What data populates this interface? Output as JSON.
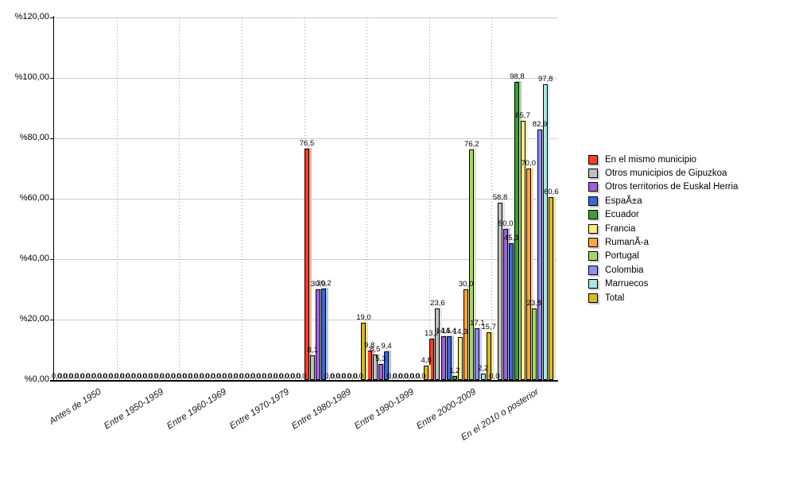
{
  "chart_data": {
    "type": "bar",
    "title": "",
    "categories": [
      "Antes de 1950",
      "Entre 1950-1959",
      "Entre 1960-1969",
      "Entre 1970-1979",
      "Entre 1980-1989",
      "Entre 1990-1999",
      "Entre 2000-2009",
      "En el 2010 o posterior"
    ],
    "series": [
      {
        "name": "En el mismo municipio",
        "color": "#f2402c",
        "shadow": "#f8b09e",
        "values": [
          0,
          0,
          0,
          0,
          76.5,
          9.8,
          13.7,
          0
        ]
      },
      {
        "name": "Otros municipios de Gipuzkoa",
        "color": "#c0c0c0",
        "shadow": "#e2e2e2",
        "values": [
          0,
          0,
          0,
          0,
          8.1,
          8.5,
          23.6,
          58.8
        ]
      },
      {
        "name": "Otros territorios de Euskal Herria",
        "color": "#9c63dd",
        "shadow": "#d2b8f0",
        "values": [
          0,
          0,
          0,
          0,
          30.0,
          5.3,
          14.5,
          50.0
        ]
      },
      {
        "name": "EspaÃ±a",
        "color": "#3e66d4",
        "shadow": "#b0c4f2",
        "values": [
          0,
          0,
          0,
          0,
          30.2,
          9.4,
          14.4,
          45.3
        ]
      },
      {
        "name": "Ecuador",
        "color": "#3f9e38",
        "shadow": "#a8d4a2",
        "values": [
          0,
          0,
          0,
          0,
          0,
          0,
          1.2,
          98.8
        ]
      },
      {
        "name": "Francia",
        "color": "#f7ec86",
        "shadow": "#fbf6c9",
        "values": [
          0,
          0,
          0,
          0,
          0,
          0,
          14.3,
          85.7
        ]
      },
      {
        "name": "RumanÃ-a",
        "color": "#faa743",
        "shadow": "#fcd9ab",
        "values": [
          0,
          0,
          0,
          0,
          0,
          0,
          30.0,
          70.0
        ]
      },
      {
        "name": "Portugal",
        "color": "#a9d46a",
        "shadow": "#d8edbd",
        "values": [
          0,
          0,
          0,
          0,
          0,
          0,
          76.2,
          23.8
        ]
      },
      {
        "name": "Colombia",
        "color": "#8f8ff2",
        "shadow": "#cbcbf8",
        "values": [
          0,
          0,
          0,
          0,
          0,
          0,
          17.1,
          82.9
        ]
      },
      {
        "name": "Marruecos",
        "color": "#ace5e2",
        "shadow": "#def5f3",
        "values": [
          0,
          0,
          0,
          0,
          0,
          0,
          2.2,
          97.8
        ]
      },
      {
        "name": "Total",
        "color": "#d6b92d",
        "shadow": "#ecdf9e",
        "values": [
          0,
          0,
          0,
          0,
          19.0,
          4.8,
          15.7,
          60.6
        ]
      }
    ],
    "y_axis": {
      "min": 0,
      "max": 120,
      "step": 20,
      "tick_labels": [
        "%0,00",
        "%20,00",
        "%40,00",
        "%60,00",
        "%80,00",
        "%100,00",
        "%120,00"
      ]
    },
    "value_labels": "all-bars, one decimal, comma separator",
    "legend_position": "right",
    "grid": true
  }
}
